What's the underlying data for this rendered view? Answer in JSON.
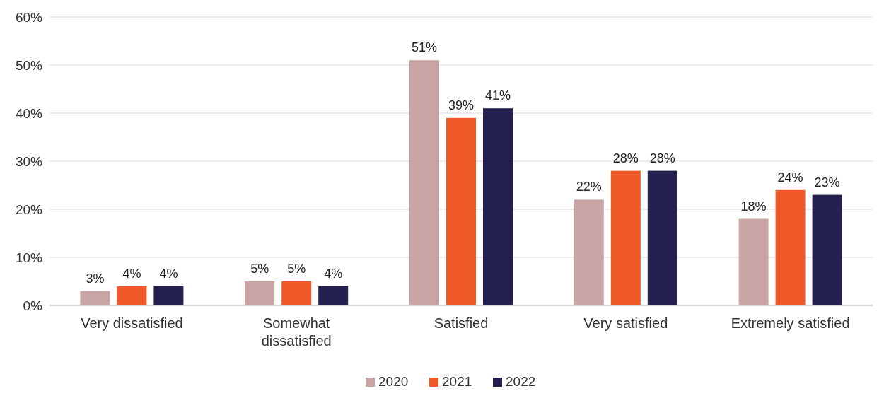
{
  "chart_data": {
    "type": "bar",
    "categories": [
      "Very dissatisfied",
      "Somewhat dissatisfied",
      "Satisfied",
      "Very satisfied",
      "Extremely satisfied"
    ],
    "series": [
      {
        "name": "2020",
        "color": "#c9a4a4",
        "values": [
          3,
          5,
          51,
          22,
          18
        ],
        "value_labels": [
          "3%",
          "5%",
          "51%",
          "22%",
          "18%"
        ]
      },
      {
        "name": "2021",
        "color": "#f05a28",
        "values": [
          4,
          5,
          39,
          28,
          24
        ],
        "value_labels": [
          "4%",
          "5%",
          "39%",
          "28%",
          "24%"
        ]
      },
      {
        "name": "2022",
        "color": "#231f4f",
        "values": [
          4,
          4,
          41,
          28,
          23
        ],
        "value_labels": [
          "4%",
          "4%",
          "41%",
          "28%",
          "23%"
        ]
      }
    ],
    "ylim": [
      0,
      60
    ],
    "yticks": [
      {
        "value": 0,
        "label": "0%"
      },
      {
        "value": 10,
        "label": "10%"
      },
      {
        "value": 20,
        "label": "20%"
      },
      {
        "value": 30,
        "label": "30%"
      },
      {
        "value": 40,
        "label": "40%"
      },
      {
        "value": 50,
        "label": "50%"
      },
      {
        "value": 60,
        "label": "60%"
      }
    ],
    "grid": "y",
    "legend": "bottom"
  }
}
